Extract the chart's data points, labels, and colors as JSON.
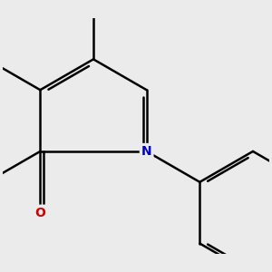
{
  "background_color": "#ebebeb",
  "bond_color": "#000000",
  "bond_width": 1.8,
  "atom_N_color": "#0000cc",
  "atom_O_color": "#cc0000",
  "figsize": [
    3.0,
    3.0
  ],
  "dpi": 100,
  "font_size": 10
}
